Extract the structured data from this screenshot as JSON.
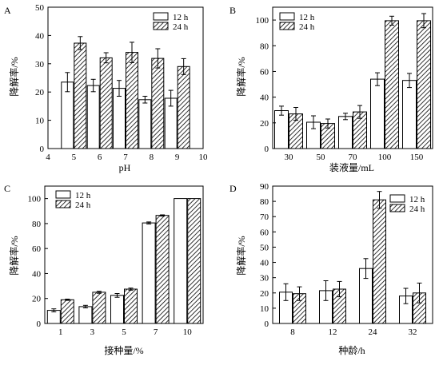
{
  "legend_labels": [
    "12 h",
    "24 h"
  ],
  "chart_data": [
    {
      "panel_label": "A",
      "type": "bar",
      "xaxis": "numeric",
      "xlabel": "pH",
      "ylabel": "降解率/%",
      "xlim": [
        4,
        10
      ],
      "xticks": [
        4,
        5,
        6,
        7,
        8,
        9,
        10
      ],
      "ylim": [
        0,
        50
      ],
      "yticks": [
        0,
        10,
        20,
        30,
        40,
        50
      ],
      "categories": [
        "5",
        "6",
        "7",
        "8",
        "9"
      ],
      "x": [
        5,
        6,
        7,
        8,
        9
      ],
      "legend_position": "top-right",
      "series": [
        {
          "name": "12 h",
          "values": [
            23.5,
            22.3,
            21.3,
            17.3,
            17.8
          ],
          "errors": [
            3.4,
            2.2,
            2.8,
            1.2,
            2.8
          ]
        },
        {
          "name": "24 h",
          "values": [
            37.3,
            32.1,
            34.0,
            31.9,
            29.0
          ],
          "errors": [
            2.3,
            1.8,
            3.6,
            3.4,
            2.8
          ]
        }
      ]
    },
    {
      "panel_label": "B",
      "type": "bar",
      "xaxis": "category",
      "xlabel": "装液量/mL",
      "ylabel": "降解率/%",
      "ylim": [
        0,
        110
      ],
      "yticks": [
        0,
        20,
        40,
        60,
        80,
        100
      ],
      "categories": [
        "30",
        "50",
        "70",
        "100",
        "150"
      ],
      "legend_position": "top-left",
      "series": [
        {
          "name": "12 h",
          "values": [
            29.5,
            20.5,
            25.0,
            54.0,
            53.0
          ],
          "errors": [
            3.5,
            5.0,
            2.5,
            5.0,
            5.5
          ]
        },
        {
          "name": "24 h",
          "values": [
            27.0,
            19.5,
            28.5,
            99.5,
            99.5
          ],
          "errors": [
            5.0,
            3.5,
            5.0,
            3.5,
            5.5
          ]
        }
      ]
    },
    {
      "panel_label": "C",
      "type": "bar",
      "xaxis": "category",
      "xlabel": "接种量/%",
      "ylabel": "降解率/%",
      "ylim": [
        0,
        110
      ],
      "yticks": [
        0,
        20,
        40,
        60,
        80,
        100
      ],
      "categories": [
        "1",
        "3",
        "5",
        "7",
        "10"
      ],
      "legend_position": "top-left",
      "series": [
        {
          "name": "12 h",
          "values": [
            10.5,
            13.5,
            22.5,
            80.5,
            100.0
          ],
          "errors": [
            1.2,
            1.0,
            1.5,
            0.8,
            0
          ]
        },
        {
          "name": "24 h",
          "values": [
            19.0,
            25.0,
            27.5,
            86.5,
            100.0
          ],
          "errors": [
            0.5,
            0.8,
            0.8,
            0.5,
            0
          ]
        }
      ]
    },
    {
      "panel_label": "D",
      "type": "bar",
      "xaxis": "category",
      "xlabel": "种龄/h",
      "ylabel": "降解率/%",
      "ylim": [
        0,
        90
      ],
      "yticks": [
        0,
        10,
        20,
        30,
        40,
        50,
        60,
        70,
        80,
        90
      ],
      "categories": [
        "8",
        "12",
        "24",
        "32"
      ],
      "legend_position": "top-right",
      "series": [
        {
          "name": "12 h",
          "values": [
            20.5,
            21.5,
            36.0,
            18.0
          ],
          "errors": [
            5.5,
            6.5,
            6.5,
            5.0
          ]
        },
        {
          "name": "24 h",
          "values": [
            19.5,
            22.5,
            81.0,
            20.0
          ],
          "errors": [
            4.5,
            5.0,
            5.5,
            6.5
          ]
        }
      ]
    }
  ]
}
